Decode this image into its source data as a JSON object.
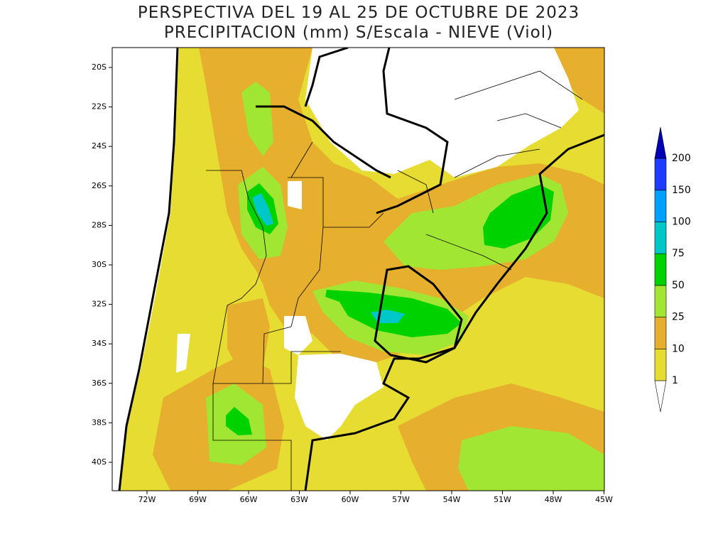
{
  "header": {
    "title": "PERSPECTIVA DEL 19 AL 25 DE OCTUBRE DE 2023",
    "subtitle": "PRECIPITACION (mm) S/Escala - NIEVE (Viol)"
  },
  "map": {
    "lat_labels": [
      "20S",
      "22S",
      "24S",
      "26S",
      "28S",
      "30S",
      "32S",
      "34S",
      "36S",
      "38S",
      "40S"
    ],
    "lon_labels": [
      "72W",
      "69W",
      "66W",
      "63W",
      "60W",
      "57W",
      "54W",
      "51W",
      "48W",
      "45W"
    ]
  },
  "legend": {
    "levels": [
      1,
      10,
      25,
      50,
      75,
      100,
      150,
      200
    ],
    "colors": [
      "#e6dc32",
      "#e6af2d",
      "#a0e632",
      "#00d200",
      "#00c8c8",
      "#00a0ff",
      "#1e3cff",
      "#0000b4"
    ]
  }
}
